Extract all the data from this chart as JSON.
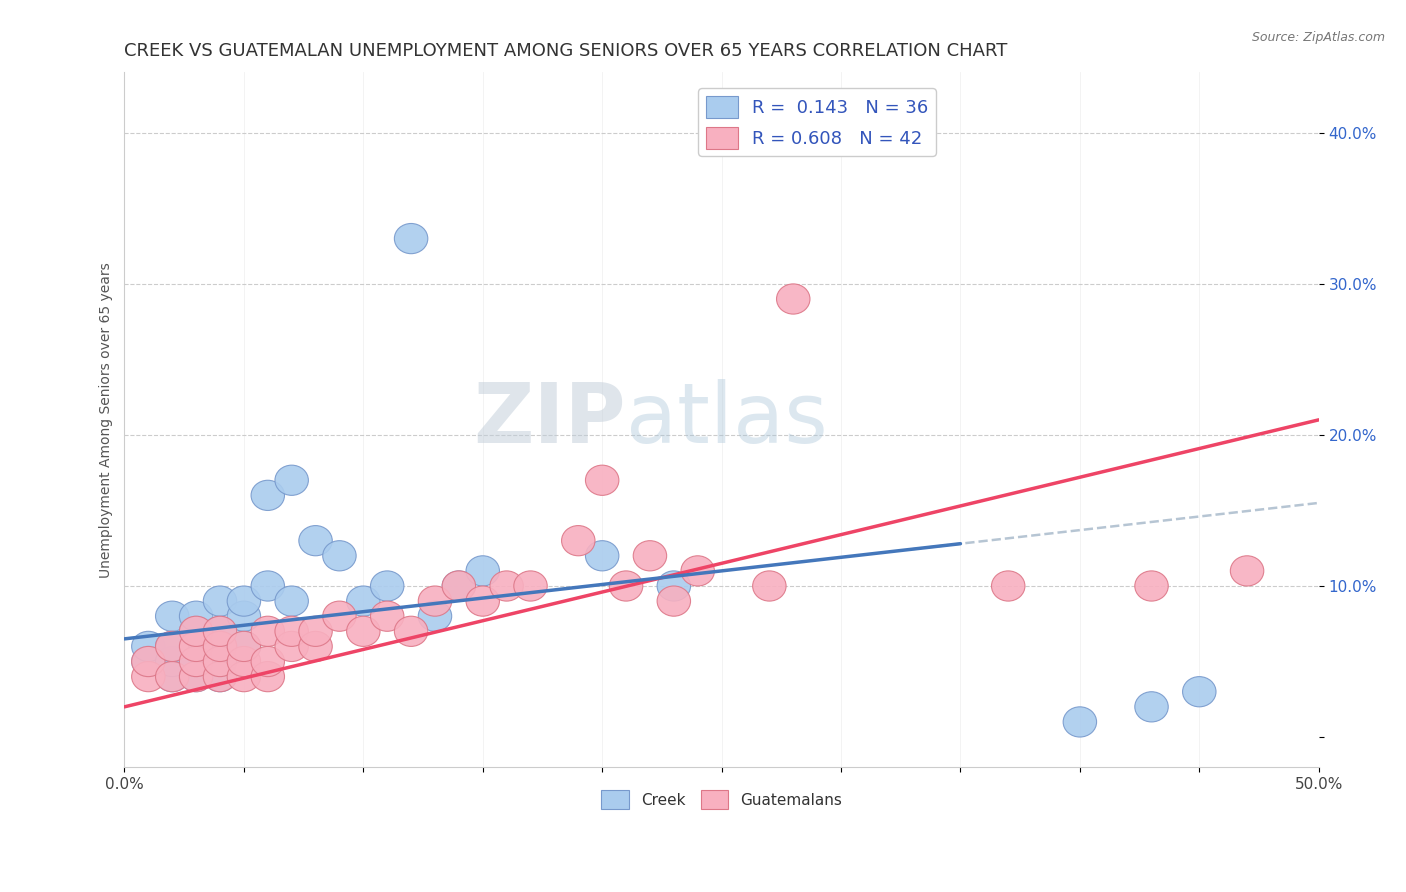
{
  "title": "CREEK VS GUATEMALAN UNEMPLOYMENT AMONG SENIORS OVER 65 YEARS CORRELATION CHART",
  "source_text": "Source: ZipAtlas.com",
  "ylabel": "Unemployment Among Seniors over 65 years",
  "xlim": [
    0.0,
    0.5
  ],
  "ylim": [
    -0.02,
    0.44
  ],
  "xticks": [
    0.0,
    0.05,
    0.1,
    0.15,
    0.2,
    0.25,
    0.3,
    0.35,
    0.4,
    0.45,
    0.5
  ],
  "xtick_labels_show": [
    "0.0%",
    "",
    "",
    "",
    "",
    "",
    "",
    "",
    "",
    "",
    "50.0%"
  ],
  "yticks": [
    0.0,
    0.1,
    0.2,
    0.3,
    0.4
  ],
  "ytick_labels": [
    "",
    "10.0%",
    "20.0%",
    "30.0%",
    "40.0%"
  ],
  "creek_color": "#aaccee",
  "creek_edge_color": "#7799cc",
  "guatemalan_color": "#f8b0c0",
  "guatemalan_edge_color": "#dd7788",
  "creek_R": 0.143,
  "creek_N": 36,
  "guatemalan_R": 0.608,
  "guatemalan_N": 42,
  "creek_line_color": "#4477bb",
  "guatemalan_line_color": "#ee4466",
  "dash_color": "#aabbcc",
  "watermark_ZIP": "ZIP",
  "watermark_atlas": "atlas",
  "background_color": "#ffffff",
  "creek_x": [
    0.01,
    0.01,
    0.02,
    0.02,
    0.02,
    0.02,
    0.03,
    0.03,
    0.03,
    0.03,
    0.03,
    0.04,
    0.04,
    0.04,
    0.04,
    0.04,
    0.05,
    0.05,
    0.05,
    0.06,
    0.06,
    0.07,
    0.07,
    0.08,
    0.09,
    0.1,
    0.11,
    0.12,
    0.13,
    0.14,
    0.15,
    0.2,
    0.23,
    0.4,
    0.43,
    0.45
  ],
  "creek_y": [
    0.05,
    0.06,
    0.04,
    0.05,
    0.06,
    0.08,
    0.04,
    0.05,
    0.06,
    0.07,
    0.08,
    0.04,
    0.05,
    0.06,
    0.07,
    0.09,
    0.06,
    0.08,
    0.09,
    0.1,
    0.16,
    0.09,
    0.17,
    0.13,
    0.12,
    0.09,
    0.1,
    0.33,
    0.08,
    0.1,
    0.11,
    0.12,
    0.1,
    0.01,
    0.02,
    0.03
  ],
  "guatemalan_x": [
    0.01,
    0.01,
    0.02,
    0.02,
    0.03,
    0.03,
    0.03,
    0.03,
    0.04,
    0.04,
    0.04,
    0.04,
    0.05,
    0.05,
    0.05,
    0.06,
    0.06,
    0.06,
    0.07,
    0.07,
    0.08,
    0.08,
    0.09,
    0.1,
    0.11,
    0.12,
    0.13,
    0.14,
    0.15,
    0.16,
    0.17,
    0.19,
    0.2,
    0.21,
    0.22,
    0.23,
    0.24,
    0.27,
    0.28,
    0.37,
    0.43,
    0.47
  ],
  "guatemalan_y": [
    0.04,
    0.05,
    0.04,
    0.06,
    0.04,
    0.05,
    0.06,
    0.07,
    0.04,
    0.05,
    0.06,
    0.07,
    0.04,
    0.05,
    0.06,
    0.04,
    0.05,
    0.07,
    0.06,
    0.07,
    0.06,
    0.07,
    0.08,
    0.07,
    0.08,
    0.07,
    0.09,
    0.1,
    0.09,
    0.1,
    0.1,
    0.13,
    0.17,
    0.1,
    0.12,
    0.09,
    0.11,
    0.1,
    0.29,
    0.1,
    0.1,
    0.11
  ]
}
